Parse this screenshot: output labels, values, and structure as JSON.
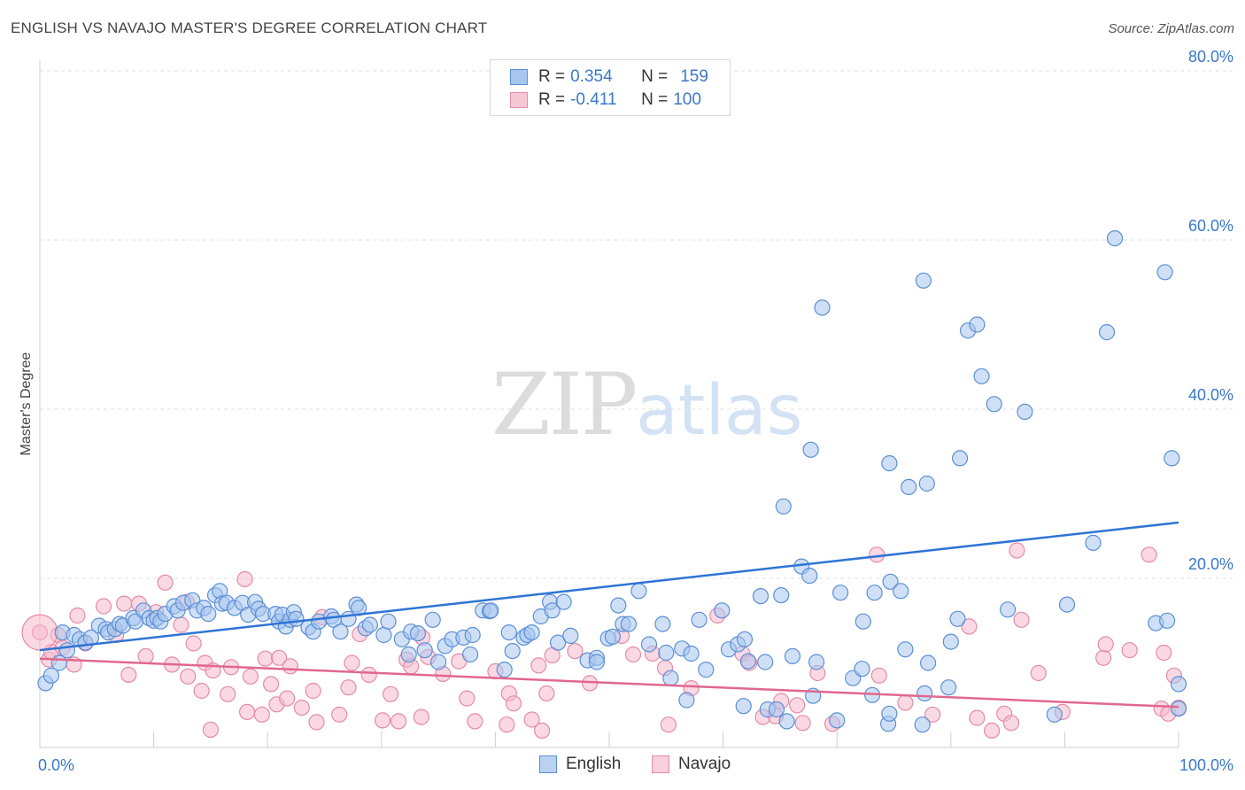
{
  "header": {
    "title": "ENGLISH VS NAVAJO MASTER'S DEGREE CORRELATION CHART",
    "source": "Source: ZipAtlas.com"
  },
  "watermark": {
    "zip": "ZIP",
    "atlas": "atlas"
  },
  "colors": {
    "english_fill": "#a7c6ef",
    "english_stroke": "#5b8fd6",
    "english_line": "#2e74d6",
    "navajo_fill": "#f6b9cc",
    "navajo_stroke": "#e58aa8",
    "navajo_line": "#e0688f",
    "tick_label": "#3a78c9",
    "grid": "#e2e2e2"
  },
  "legend": {
    "english": {
      "r_label": "R = ",
      "r_value": "0.354",
      "n_label": "N = ",
      "n_value": "159"
    },
    "navajo": {
      "r_label": "R = ",
      "r_value": "-0.411",
      "n_label": "N = ",
      "n_value": "100"
    }
  },
  "bottom_legend": {
    "english": "English",
    "navajo": "Navajo"
  },
  "chart_data": {
    "type": "scatter",
    "ylabel": "Master's Degree",
    "xlim": [
      0,
      100
    ],
    "ylim": [
      0,
      80
    ],
    "y_ticks": [
      {
        "value": 20,
        "label": "20.0%"
      },
      {
        "value": 40,
        "label": "40.0%"
      },
      {
        "value": 60,
        "label": "60.0%"
      },
      {
        "value": 80,
        "label": "80.0%"
      }
    ],
    "x_tick_labels": {
      "min": "0.0%",
      "max": "100.0%"
    },
    "grid": true,
    "legend_position": "top-center",
    "series": [
      {
        "name": "English",
        "trend": {
          "x": [
            0,
            100
          ],
          "y": [
            11.5,
            26.6
          ]
        },
        "points": [
          [
            0.5,
            7.6
          ],
          [
            1,
            8.5
          ],
          [
            1.7,
            10
          ],
          [
            2,
            13.6
          ],
          [
            2.4,
            11.5
          ],
          [
            3,
            13.3
          ],
          [
            3.5,
            12.8
          ],
          [
            4,
            12.4
          ],
          [
            4.5,
            13
          ],
          [
            5.2,
            14.4
          ],
          [
            5.8,
            14
          ],
          [
            6,
            13.6
          ],
          [
            6.6,
            14
          ],
          [
            7,
            14.6
          ],
          [
            7.3,
            14.4
          ],
          [
            8.2,
            15.3
          ],
          [
            8.4,
            14.9
          ],
          [
            9.1,
            16.2
          ],
          [
            9.6,
            15.3
          ],
          [
            10,
            15
          ],
          [
            10.3,
            15.3
          ],
          [
            10.6,
            14.9
          ],
          [
            11,
            15.8
          ],
          [
            11.8,
            16.7
          ],
          [
            12.1,
            16.2
          ],
          [
            12.6,
            17.1
          ],
          [
            13.4,
            17.4
          ],
          [
            13.8,
            16.2
          ],
          [
            14.4,
            16.5
          ],
          [
            14.8,
            15.8
          ],
          [
            15.4,
            18
          ],
          [
            15.8,
            18.5
          ],
          [
            16,
            17
          ],
          [
            16.4,
            17.1
          ],
          [
            17.1,
            16.5
          ],
          [
            17.8,
            17.1
          ],
          [
            18.3,
            15.7
          ],
          [
            18.9,
            17.2
          ],
          [
            19.2,
            16.4
          ],
          [
            19.6,
            15.8
          ],
          [
            20.7,
            15.8
          ],
          [
            21,
            14.9
          ],
          [
            21.3,
            15.7
          ],
          [
            21.6,
            14.3
          ],
          [
            22,
            15.1
          ],
          [
            22.3,
            16
          ],
          [
            22.5,
            15.2
          ],
          [
            23.6,
            14.2
          ],
          [
            24,
            13.7
          ],
          [
            24.5,
            14.9
          ],
          [
            25.6,
            15.5
          ],
          [
            25.8,
            15.1
          ],
          [
            26.4,
            13.7
          ],
          [
            27.1,
            15.2
          ],
          [
            27.8,
            16.9
          ],
          [
            28,
            16.5
          ],
          [
            28.6,
            14.1
          ],
          [
            29,
            14.5
          ],
          [
            30.2,
            13.3
          ],
          [
            30.6,
            14.9
          ],
          [
            31.8,
            12.8
          ],
          [
            32.4,
            11
          ],
          [
            32.6,
            13.7
          ],
          [
            33.2,
            13.5
          ],
          [
            33.8,
            11.5
          ],
          [
            34.5,
            15.1
          ],
          [
            35,
            10.1
          ],
          [
            35.6,
            12
          ],
          [
            36.2,
            12.8
          ],
          [
            37.2,
            13
          ],
          [
            37.8,
            11
          ],
          [
            38,
            13.3
          ],
          [
            38.9,
            16.2
          ],
          [
            39.5,
            16.1
          ],
          [
            39.6,
            16.2
          ],
          [
            40.8,
            9.2
          ],
          [
            41.2,
            13.6
          ],
          [
            41.5,
            11.4
          ],
          [
            42.5,
            13
          ],
          [
            42.8,
            13.3
          ],
          [
            43.2,
            13.6
          ],
          [
            44,
            15.5
          ],
          [
            44.8,
            17.2
          ],
          [
            45,
            16.2
          ],
          [
            45.5,
            12.4
          ],
          [
            46,
            17.2
          ],
          [
            46.6,
            13.2
          ],
          [
            48.1,
            10.3
          ],
          [
            48.9,
            10.6
          ],
          [
            48.9,
            10.1
          ],
          [
            49.9,
            12.9
          ],
          [
            50.3,
            13.1
          ],
          [
            50.8,
            16.8
          ],
          [
            51.2,
            14.6
          ],
          [
            51.7,
            14.6
          ],
          [
            52.6,
            18.5
          ],
          [
            53.5,
            12.2
          ],
          [
            54.7,
            14.6
          ],
          [
            55,
            11.2
          ],
          [
            55.4,
            8.2
          ],
          [
            56.4,
            11.7
          ],
          [
            56.8,
            5.6
          ],
          [
            57.2,
            11.1
          ],
          [
            57.9,
            15.1
          ],
          [
            58.5,
            9.2
          ],
          [
            59.9,
            16.2
          ],
          [
            60.5,
            11.6
          ],
          [
            61.3,
            12.2
          ],
          [
            61.8,
            4.9
          ],
          [
            61.9,
            12.8
          ],
          [
            62.2,
            10.2
          ],
          [
            63.3,
            17.9
          ],
          [
            63.7,
            10.1
          ],
          [
            63.9,
            4.5
          ],
          [
            64.7,
            4.5
          ],
          [
            65.1,
            18
          ],
          [
            65.3,
            28.5
          ],
          [
            65.6,
            3.1
          ],
          [
            66.1,
            10.8
          ],
          [
            66.9,
            21.4
          ],
          [
            67.6,
            20.3
          ],
          [
            67.7,
            35.2
          ],
          [
            67.9,
            6.1
          ],
          [
            68.2,
            10.1
          ],
          [
            68.7,
            52
          ],
          [
            70,
            3.2
          ],
          [
            70.3,
            18.3
          ],
          [
            71.4,
            8.2
          ],
          [
            72.2,
            9.3
          ],
          [
            72.3,
            14.9
          ],
          [
            73.1,
            6.2
          ],
          [
            73.3,
            18.3
          ],
          [
            74.5,
            2.8
          ],
          [
            74.6,
            33.6
          ],
          [
            74.7,
            19.6
          ],
          [
            74.6,
            4
          ],
          [
            75.6,
            18.5
          ],
          [
            76,
            11.6
          ],
          [
            76.3,
            30.8
          ],
          [
            77.5,
            2.7
          ],
          [
            77.7,
            6.4
          ],
          [
            77.9,
            31.2
          ],
          [
            77.6,
            55.2
          ],
          [
            78,
            10
          ],
          [
            79.8,
            7.1
          ],
          [
            80,
            12.5
          ],
          [
            80.6,
            15.2
          ],
          [
            80.8,
            34.2
          ],
          [
            81.5,
            49.3
          ],
          [
            82.3,
            50
          ],
          [
            82.7,
            43.9
          ],
          [
            83.8,
            40.6
          ],
          [
            85,
            16.3
          ],
          [
            86.5,
            39.7
          ],
          [
            89.1,
            3.9
          ],
          [
            90.2,
            16.9
          ],
          [
            92.5,
            24.2
          ],
          [
            93.7,
            49.1
          ],
          [
            94.4,
            60.2
          ],
          [
            98,
            14.7
          ],
          [
            98.8,
            56.2
          ],
          [
            99,
            15
          ],
          [
            99.4,
            34.2
          ],
          [
            100,
            4.6
          ],
          [
            100,
            7.5
          ]
        ]
      },
      {
        "name": "Navajo",
        "trend": {
          "x": [
            0,
            100
          ],
          "y": [
            10.5,
            4.8
          ]
        },
        "points": [
          [
            0,
            13.6
          ],
          [
            0.8,
            10.4
          ],
          [
            1,
            11.3
          ],
          [
            1.6,
            13.3
          ],
          [
            2,
            11.8
          ],
          [
            3,
            9.8
          ],
          [
            3.3,
            15.6
          ],
          [
            4,
            12.3
          ],
          [
            5.6,
            16.7
          ],
          [
            6.7,
            13.3
          ],
          [
            7.4,
            17
          ],
          [
            7.8,
            8.6
          ],
          [
            8.7,
            17
          ],
          [
            9.3,
            10.8
          ],
          [
            10.2,
            16
          ],
          [
            11,
            19.5
          ],
          [
            11.6,
            9.8
          ],
          [
            12.4,
            14.5
          ],
          [
            12.9,
            17.2
          ],
          [
            13,
            8.4
          ],
          [
            13.5,
            12.3
          ],
          [
            14.2,
            6.7
          ],
          [
            14.5,
            10
          ],
          [
            15,
            2.1
          ],
          [
            15.2,
            9.1
          ],
          [
            16.5,
            6.3
          ],
          [
            16.8,
            9.5
          ],
          [
            18,
            19.9
          ],
          [
            18.2,
            4.2
          ],
          [
            18.5,
            8.4
          ],
          [
            19.5,
            3.9
          ],
          [
            19.8,
            10.5
          ],
          [
            20.3,
            7.5
          ],
          [
            20.8,
            5.1
          ],
          [
            21,
            10.6
          ],
          [
            21.7,
            5.8
          ],
          [
            22,
            9.6
          ],
          [
            23,
            4.7
          ],
          [
            24,
            6.7
          ],
          [
            24.3,
            3
          ],
          [
            24.8,
            15.4
          ],
          [
            26.3,
            3.9
          ],
          [
            27.1,
            7.1
          ],
          [
            27.4,
            10
          ],
          [
            28.1,
            13.4
          ],
          [
            28.9,
            8.6
          ],
          [
            30.1,
            3.2
          ],
          [
            30.8,
            6.3
          ],
          [
            31.5,
            3.1
          ],
          [
            32.2,
            10.4
          ],
          [
            32.6,
            9.6
          ],
          [
            33.5,
            3.6
          ],
          [
            33.6,
            13
          ],
          [
            34.1,
            10.7
          ],
          [
            35.4,
            8.7
          ],
          [
            36.8,
            10.2
          ],
          [
            37.5,
            5.8
          ],
          [
            38.2,
            3.1
          ],
          [
            40,
            9
          ],
          [
            41,
            2.7
          ],
          [
            41.2,
            6.4
          ],
          [
            41.6,
            5.2
          ],
          [
            43.2,
            3.3
          ],
          [
            43.8,
            9.7
          ],
          [
            44.1,
            2
          ],
          [
            44.5,
            6.4
          ],
          [
            45,
            10.9
          ],
          [
            47,
            11.4
          ],
          [
            48.3,
            7.6
          ],
          [
            51.1,
            13.2
          ],
          [
            52.1,
            11
          ],
          [
            53.8,
            11.1
          ],
          [
            54.9,
            9.4
          ],
          [
            55.2,
            2.7
          ],
          [
            57.2,
            7
          ],
          [
            59.5,
            15.6
          ],
          [
            61.7,
            11.1
          ],
          [
            62.3,
            10
          ],
          [
            63.5,
            3.6
          ],
          [
            64.6,
            3.7
          ],
          [
            65.1,
            5.5
          ],
          [
            66.5,
            5
          ],
          [
            67,
            2.9
          ],
          [
            68.3,
            8.8
          ],
          [
            69.6,
            2.8
          ],
          [
            73.5,
            22.8
          ],
          [
            73.7,
            8.5
          ],
          [
            76,
            5.3
          ],
          [
            78.4,
            3.9
          ],
          [
            81.6,
            14.3
          ],
          [
            82.3,
            3.5
          ],
          [
            83.6,
            2
          ],
          [
            84.7,
            4
          ],
          [
            85.3,
            2.9
          ],
          [
            85.8,
            23.3
          ],
          [
            86.2,
            15.1
          ],
          [
            87.7,
            8.8
          ],
          [
            89.8,
            4.2
          ],
          [
            93.4,
            10.6
          ],
          [
            93.6,
            12.2
          ],
          [
            95.7,
            11.5
          ],
          [
            97.4,
            22.8
          ],
          [
            98.5,
            4.6
          ],
          [
            98.7,
            11.2
          ],
          [
            99.1,
            4
          ],
          [
            99.6,
            8.5
          ],
          [
            100,
            4.7
          ]
        ]
      }
    ]
  }
}
